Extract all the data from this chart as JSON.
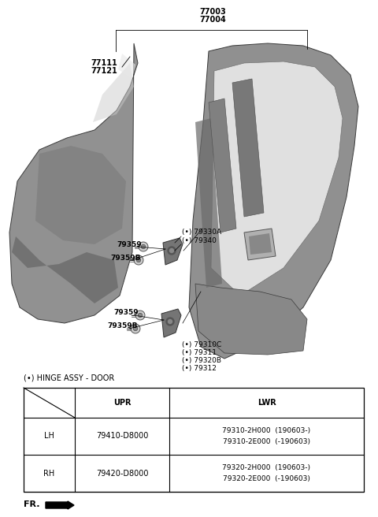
{
  "bg_color": "#ffffff",
  "text_color": "#000000",
  "line_color": "#000000",
  "part_labels_top": [
    "77003",
    "77004"
  ],
  "part_labels_door_panel": [
    "77111",
    "77121"
  ],
  "upper_hinge_labels": [
    "(•) 79330A",
    "(•) 79340"
  ],
  "lower_hinge_labels": [
    "(•) 79310C",
    "(•) 79311",
    "(•) 79320B",
    "(•) 79312"
  ],
  "bolt_upper_1": "79359",
  "bolt_upper_2": "79359B",
  "bolt_lower_1": "79359",
  "bolt_lower_2": "79359B",
  "table_title": "(•) HINGE ASSY - DOOR",
  "table_header_upr": "UPR",
  "table_header_lwr": "LWR",
  "table_rows": [
    [
      "LH",
      "79410-D8000",
      "79310-2H000  (190603-)",
      "79310-2E000  (-190603)"
    ],
    [
      "RH",
      "79420-D8000",
      "79320-2H000  (190603-)",
      "79320-2E000  (-190603)"
    ]
  ],
  "fr_label": "FR.",
  "font_size_small": 6.5,
  "font_size_label": 7.0,
  "font_size_table": 7.0
}
